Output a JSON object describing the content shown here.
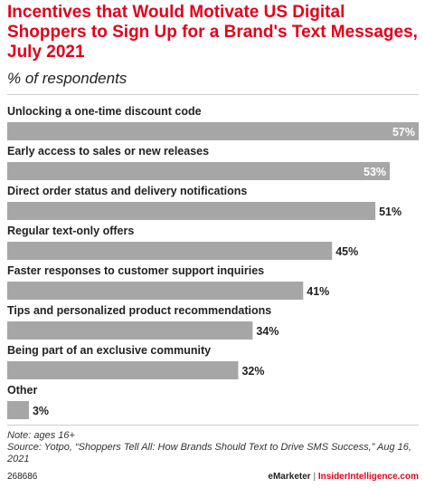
{
  "header": {
    "title": "Incentives that Would Motivate US Digital Shoppers to Sign Up for a Brand's Text Messages, July 2021",
    "subtitle": "% of respondents"
  },
  "chart_data": {
    "type": "bar",
    "orientation": "horizontal",
    "categories": [
      "Unlocking a one-time discount code",
      "Early access to sales or new releases",
      "Direct order status and delivery notifications",
      "Regular text-only offers",
      "Faster responses to customer support inquiries",
      "Tips and personalized product recommendations",
      "Being part of an exclusive community",
      "Other"
    ],
    "values": [
      57,
      53,
      51,
      45,
      41,
      34,
      32,
      3
    ],
    "value_labels": [
      "57%",
      "53%",
      "51%",
      "45%",
      "41%",
      "34%",
      "32%",
      "3%"
    ],
    "xlim": [
      0,
      57
    ],
    "bar_color": "#a6a6a6",
    "grid": false,
    "legend": false
  },
  "footer": {
    "note": "Note: ages 16+",
    "source": "Source: Yotpo, “Shoppers Tell All: How Brands Should Text to Drive SMS Success,” Aug 16, 2021",
    "chart_id": "268686",
    "brand_left": "eMarketer",
    "separator": "|",
    "brand_right": "InsiderIntelligence.com"
  },
  "colors": {
    "title": "#e3001b",
    "bar": "#a6a6a6",
    "text": "#222222"
  }
}
